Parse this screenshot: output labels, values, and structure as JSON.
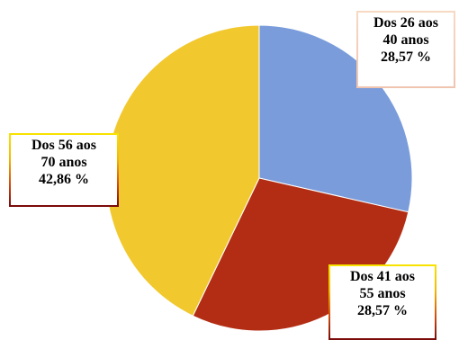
{
  "chart_data": {
    "type": "pie",
    "start_angle_deg": 0,
    "direction": "clockwise",
    "slices": [
      {
        "label_lines": [
          "Dos 26 aos",
          "40 anos",
          "28,57 %"
        ],
        "value": 28.57,
        "color": "#7a9cdb"
      },
      {
        "label_lines": [
          "Dos 41 aos",
          "55 anos",
          "28,57 %"
        ],
        "value": 28.57,
        "color": "#b32d14"
      },
      {
        "label_lines": [
          "Dos 56 aos",
          "70 anos",
          "42,86 %"
        ],
        "value": 42.86,
        "color": "#f2c82f"
      }
    ]
  }
}
